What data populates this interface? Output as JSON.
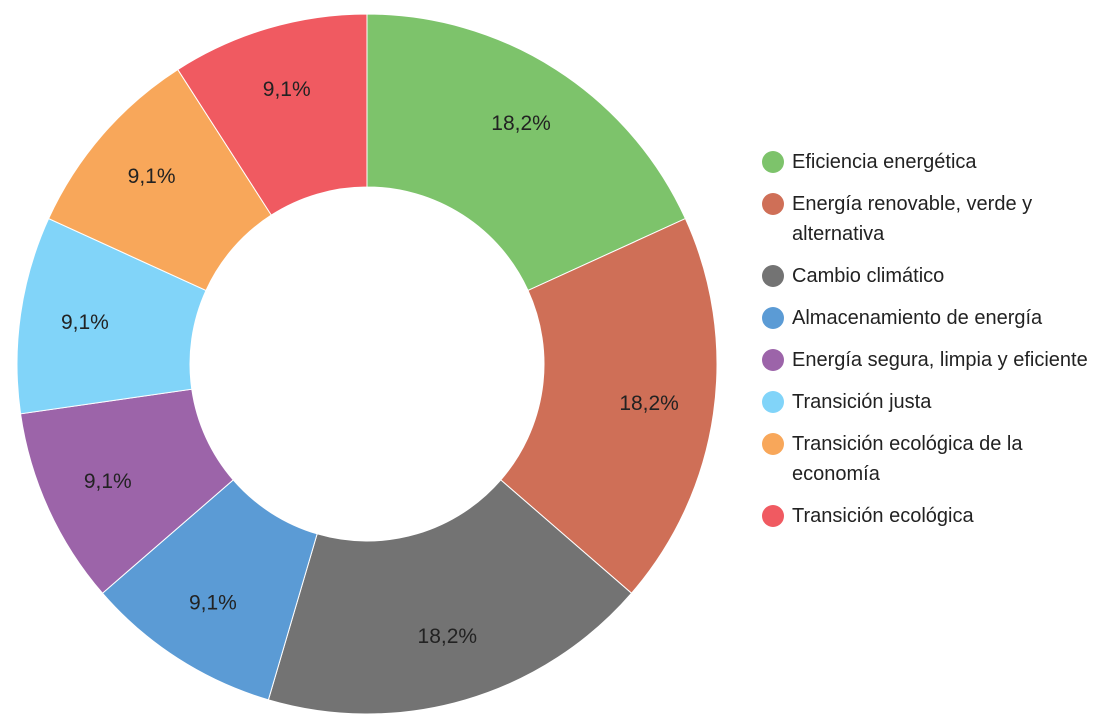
{
  "chart_data": {
    "type": "donut",
    "categories": [
      "Eficiencia energética",
      "Energía renovable, verde y alternativa",
      "Cambio climático",
      "Almacenamiento de energía",
      "Energía segura, limpia y eficiente",
      "Transición justa",
      "Transición ecológica de la economía",
      "Transición ecológica"
    ],
    "values": [
      18.2,
      18.2,
      18.2,
      9.1,
      9.1,
      9.1,
      9.1,
      9.1
    ],
    "value_labels": [
      "18,2%",
      "18,2%",
      "18,2%",
      "9,1%",
      "9,1%",
      "9,1%",
      "9,1%",
      "9,1%"
    ],
    "colors": [
      "#7dc36b",
      "#cf6f57",
      "#737373",
      "#5b9bd5",
      "#9c64a9",
      "#81d4f9",
      "#f8a75a",
      "#f05a61"
    ],
    "legend": "right"
  }
}
